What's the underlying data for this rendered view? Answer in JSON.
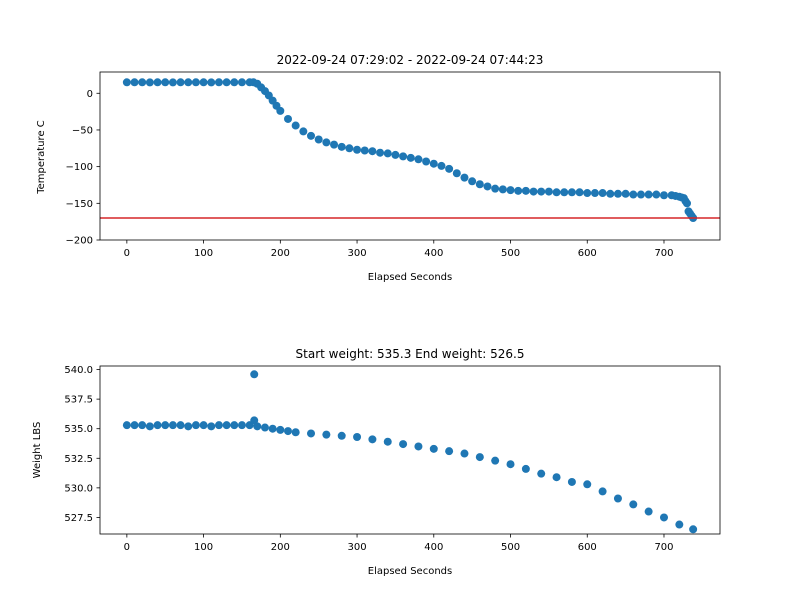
{
  "chart_data": [
    {
      "type": "scatter",
      "title": "2022-09-24 07:29:02 - 2022-09-24 07:44:23",
      "xlabel": "Elapsed Seconds",
      "ylabel": "Temperature C",
      "xlim": [
        -35,
        773
      ],
      "ylim": [
        -200,
        29
      ],
      "xticks": [
        0,
        100,
        200,
        300,
        400,
        500,
        600,
        700
      ],
      "yticks": [
        0,
        -50,
        -100,
        -150,
        -200
      ],
      "xtick_labels": [
        "0",
        "100",
        "200",
        "300",
        "400",
        "500",
        "600",
        "700"
      ],
      "ytick_labels": [
        "0",
        "−50",
        "−100",
        "−150",
        "−200"
      ],
      "marker_color": "#1f77b4",
      "reference_line": {
        "y": -170,
        "color": "#d62728"
      },
      "x": [
        0,
        10,
        20,
        30,
        40,
        50,
        60,
        70,
        80,
        90,
        100,
        110,
        120,
        130,
        140,
        150,
        160,
        165,
        170,
        175,
        180,
        185,
        190,
        195,
        200,
        210,
        220,
        230,
        240,
        250,
        260,
        270,
        280,
        290,
        300,
        310,
        320,
        330,
        340,
        350,
        360,
        370,
        380,
        390,
        400,
        410,
        420,
        430,
        440,
        450,
        460,
        470,
        480,
        490,
        500,
        510,
        520,
        530,
        540,
        550,
        560,
        570,
        580,
        590,
        600,
        610,
        620,
        630,
        640,
        650,
        660,
        670,
        680,
        690,
        700,
        710,
        715,
        720,
        723,
        726,
        728,
        730,
        732,
        734,
        736,
        738
      ],
      "y": [
        15,
        15,
        15,
        14.8,
        15,
        15,
        14.8,
        15,
        15,
        15,
        15,
        14.8,
        15,
        15,
        15,
        15,
        15,
        15,
        13,
        8,
        3,
        -3,
        -10,
        -17,
        -24,
        -35,
        -44,
        -52,
        -58,
        -63,
        -67,
        -70,
        -73,
        -75,
        -77,
        -78,
        -79,
        -81,
        -82,
        -84,
        -86,
        -88,
        -90,
        -93,
        -96,
        -99,
        -103,
        -109,
        -115,
        -120,
        -124,
        -127,
        -130,
        -131,
        -132,
        -133,
        -133,
        -134,
        -134,
        -134,
        -135,
        -135,
        -135,
        -135,
        -136,
        -136,
        -136,
        -137,
        -137,
        -137,
        -138,
        -138,
        -138,
        -138,
        -139,
        -139,
        -140,
        -141,
        -142,
        -143,
        -147,
        -150,
        -161,
        -164,
        -167,
        -170
      ]
    },
    {
      "type": "scatter",
      "title": "Start weight: 535.3 End weight: 526.5",
      "xlabel": "Elapsed Seconds",
      "ylabel": "Weight LBS",
      "xlim": [
        -35,
        773
      ],
      "ylim": [
        526.1,
        540.3
      ],
      "xticks": [
        0,
        100,
        200,
        300,
        400,
        500,
        600,
        700
      ],
      "yticks": [
        527.5,
        530.0,
        532.5,
        535.0,
        537.5,
        540.0
      ],
      "xtick_labels": [
        "0",
        "100",
        "200",
        "300",
        "400",
        "500",
        "600",
        "700"
      ],
      "ytick_labels": [
        "527.5",
        "530.0",
        "532.5",
        "535.0",
        "537.5",
        "540.0"
      ],
      "marker_color": "#1f77b4",
      "x": [
        0,
        10,
        20,
        30,
        40,
        50,
        60,
        70,
        80,
        90,
        100,
        110,
        120,
        130,
        140,
        150,
        160,
        166,
        166,
        170,
        180,
        190,
        200,
        210,
        220,
        240,
        260,
        280,
        300,
        320,
        340,
        360,
        380,
        400,
        420,
        440,
        460,
        480,
        500,
        520,
        540,
        560,
        580,
        600,
        620,
        640,
        660,
        680,
        700,
        720,
        738
      ],
      "y": [
        535.3,
        535.3,
        535.3,
        535.2,
        535.3,
        535.3,
        535.3,
        535.3,
        535.2,
        535.3,
        535.3,
        535.2,
        535.3,
        535.3,
        535.3,
        535.3,
        535.3,
        539.6,
        535.7,
        535.2,
        535.1,
        535.0,
        534.9,
        534.8,
        534.7,
        534.6,
        534.5,
        534.4,
        534.3,
        534.1,
        533.9,
        533.7,
        533.5,
        533.3,
        533.1,
        532.9,
        532.6,
        532.3,
        532.0,
        531.6,
        531.2,
        530.9,
        530.5,
        530.3,
        529.7,
        529.1,
        528.6,
        528.0,
        527.5,
        526.9,
        526.5
      ]
    }
  ]
}
